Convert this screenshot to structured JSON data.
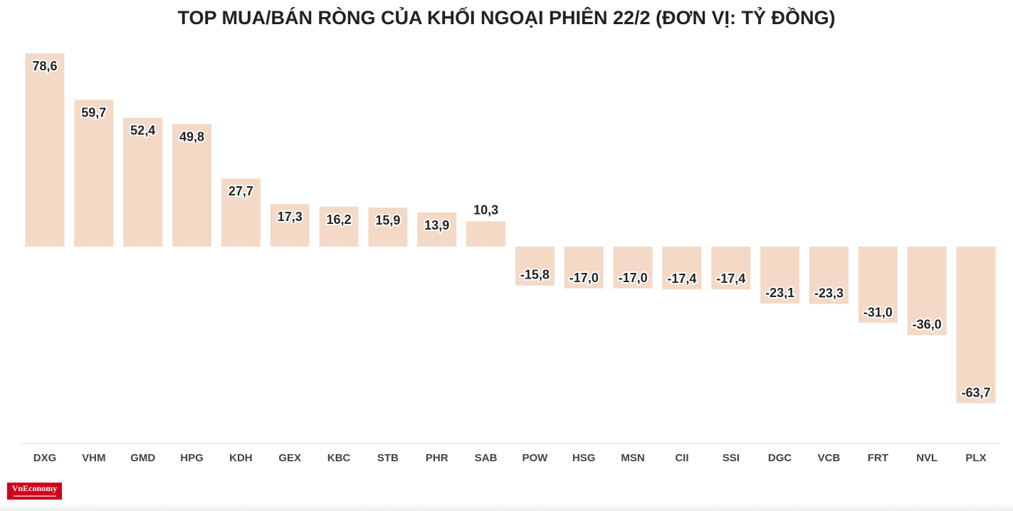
{
  "chart_data": {
    "type": "bar",
    "title": "TOP MUA/BÁN RÒNG CỦA KHỐI NGOẠI PHIÊN 22/2 (ĐƠN VỊ: TỶ ĐỒNG)",
    "xlabel": "",
    "ylabel": "",
    "categories": [
      "DXG",
      "VHM",
      "GMD",
      "HPG",
      "KDH",
      "GEX",
      "KBC",
      "STB",
      "PHR",
      "SAB",
      "POW",
      "HSG",
      "MSN",
      "CII",
      "SSI",
      "DGC",
      "VCB",
      "FRT",
      "NVL",
      "PLX"
    ],
    "values": [
      78.6,
      59.7,
      52.4,
      49.8,
      27.7,
      17.3,
      16.2,
      15.9,
      13.9,
      10.3,
      -15.8,
      -17.0,
      -17.0,
      -17.4,
      -17.4,
      -23.1,
      -23.3,
      -31.0,
      -36.0,
      -63.7
    ],
    "value_labels": [
      "78,6",
      "59,7",
      "52,4",
      "49,8",
      "27,7",
      "17,3",
      "16,2",
      "15,9",
      "13,9",
      "10,3",
      "-15,8",
      "-17,0",
      "-17,0",
      "-17,4",
      "-17,4",
      "-23,1",
      "-23,3",
      "-31,0",
      "-36,0",
      "-63,7"
    ],
    "ylim": [
      -80,
      80
    ],
    "grid": false,
    "legend": "none",
    "bar_color": "#f3d9c6",
    "axis_color": "#dddddd"
  },
  "brand": {
    "logo_text": "VnEconomy",
    "logo_color": "#d0021b"
  }
}
